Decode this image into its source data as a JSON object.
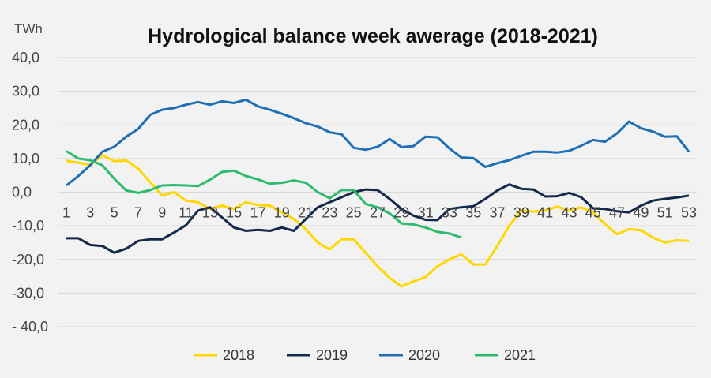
{
  "chart_data": {
    "type": "line",
    "title": "Hydrological balance week awerage (2018-2021)",
    "ylabel": "TWh",
    "xlabel": "",
    "ylim": [
      -40,
      40
    ],
    "yticks": [
      40,
      30,
      20,
      10,
      0,
      -10,
      -20,
      -30,
      -40
    ],
    "ytick_labels": [
      "40,0",
      "30,0",
      "20,0",
      "10,0",
      "0,0",
      "-10,0",
      "-20,0",
      "-30,0",
      "- 40,0"
    ],
    "xticks": [
      1,
      3,
      5,
      7,
      9,
      11,
      13,
      15,
      17,
      19,
      21,
      23,
      25,
      27,
      29,
      31,
      33,
      35,
      37,
      39,
      41,
      43,
      45,
      47,
      49,
      51,
      53
    ],
    "grid": true,
    "legend": "bottom",
    "series": [
      {
        "name": "2018",
        "color": "#ffd700",
        "values": [
          9.3,
          8.8,
          8,
          11,
          9.2,
          9.4,
          7,
          3,
          -1,
          0,
          -2.5,
          -3,
          -5,
          -4,
          -5,
          -3,
          -3.8,
          -4,
          -6,
          -8,
          -11,
          -15,
          -17,
          -14,
          -14,
          -18,
          -22,
          -25.5,
          -28,
          -26.5,
          -25.3,
          -22,
          -20,
          -18.5,
          -21.5,
          -21.5,
          -16,
          -10,
          -5.5,
          -5.8,
          -5.5,
          -4.3,
          -5.5,
          -4.5,
          -6,
          -9.5,
          -12.5,
          -11,
          -11.3,
          -13.5,
          -15,
          -14.3,
          -14.5
        ]
      },
      {
        "name": "2019",
        "color": "#13294b",
        "values": [
          -13.7,
          -13.7,
          -15.7,
          -16,
          -18,
          -16.8,
          -14.5,
          -14,
          -14,
          -12,
          -9.8,
          -5.5,
          -4.5,
          -7.5,
          -10.5,
          -11.5,
          -11.2,
          -11.5,
          -10.5,
          -11.5,
          -8,
          -4.5,
          -3,
          -1.5,
          0,
          0.8,
          0.6,
          -2,
          -5,
          -7,
          -8.2,
          -8.3,
          -5,
          -4.5,
          -4.2,
          -2,
          0.5,
          2.3,
          1,
          0.8,
          -1.3,
          -1.2,
          -0.2,
          -1.5,
          -4.8,
          -5,
          -5.7,
          -6,
          -4,
          -2.5,
          -2,
          -1.6,
          -1
        ]
      },
      {
        "name": "2020",
        "color": "#1e6fb5",
        "values": [
          2,
          4.8,
          8,
          12,
          13.5,
          16.5,
          18.8,
          23,
          24.5,
          25,
          26,
          26.8,
          26,
          27,
          26.5,
          27.5,
          25.5,
          24.5,
          23.3,
          22,
          20.5,
          19.5,
          17.8,
          17.2,
          13.2,
          12.6,
          13.5,
          15.8,
          13.4,
          13.7,
          16.5,
          16.3,
          13,
          10.3,
          10.1,
          7.5,
          8.6,
          9.5,
          10.8,
          12,
          12,
          11.8,
          12.3,
          13.8,
          15.5,
          15,
          17.5,
          21,
          19,
          18,
          16.5,
          16.6,
          12
        ]
      },
      {
        "name": "2021",
        "color": "#2dbb6e",
        "values": [
          12.2,
          10,
          9.5,
          8,
          4,
          0.5,
          -0.2,
          0.6,
          2,
          2.1,
          2,
          1.8,
          3.7,
          6,
          6.4,
          4.8,
          3.8,
          2.5,
          2.8,
          3.5,
          2.8,
          0,
          -1.8,
          0.6,
          0.6,
          -3.5,
          -4.5,
          -6.3,
          -9.3,
          -9.6,
          -10.5,
          -11.8,
          -12.3,
          -13.5
        ]
      }
    ]
  }
}
